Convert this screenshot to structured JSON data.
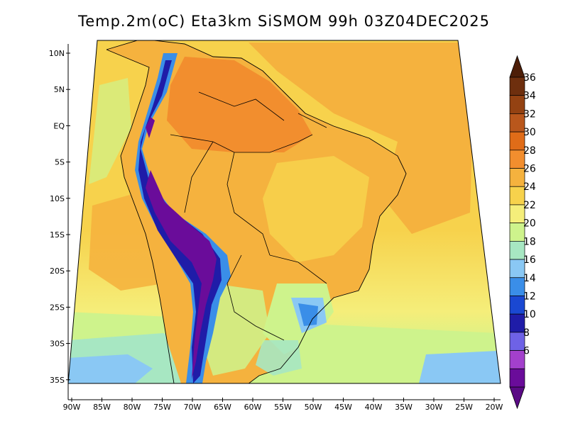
{
  "title": "Temp.2m(oC) Eta3km SiSMOM 99h 03Z04DEC2025",
  "lat_labels": [
    "10N",
    "5N",
    "EQ",
    "5S",
    "10S",
    "15S",
    "20S",
    "25S",
    "30S",
    "35S"
  ],
  "lon_labels": [
    "90W",
    "85W",
    "80W",
    "75W",
    "70W",
    "65W",
    "60W",
    "55W",
    "50W",
    "45W",
    "40W",
    "35W",
    "30W",
    "25W",
    "20W"
  ],
  "colorbar": {
    "labels": [
      "36",
      "34",
      "32",
      "30",
      "28",
      "26",
      "24",
      "22",
      "20",
      "18",
      "16",
      "14",
      "12",
      "10",
      "8",
      "6"
    ],
    "colors": [
      "#6e2f0e",
      "#944212",
      "#b9571c",
      "#e06c18",
      "#f28e2e",
      "#f5b23e",
      "#f7d24c",
      "#f5ee7a",
      "#cef38c",
      "#a7e7c2",
      "#8ac8f4",
      "#3a8ee8",
      "#1a48d2",
      "#1f1ca8",
      "#6e62e6",
      "#a340cc",
      "#6a0c9a"
    ],
    "top_arrow_color": "#4d1e08",
    "bottom_arrow_color": "#5a0a85"
  },
  "colors": {
    "ocean_warm": "#f7d24c",
    "ocean_hot": "#f5b23e",
    "land_base": "#f5b23e",
    "land_hot": "#f28e2e",
    "cool_south": "#cef38c",
    "cold_south": "#a7e7c2",
    "coldest_south": "#8ac8f4",
    "andes_mid": "#3a8ee8",
    "andes_cold": "#1f1ca8",
    "andes_core": "#6a0c9a"
  }
}
